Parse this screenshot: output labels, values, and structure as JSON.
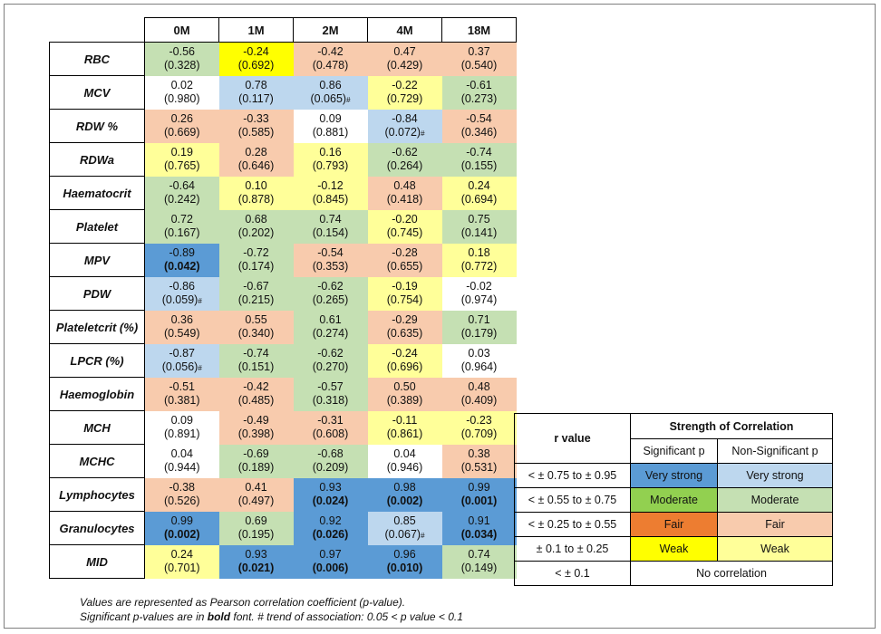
{
  "columns": [
    "0M",
    "1M",
    "2M",
    "4M",
    "18M"
  ],
  "rows": [
    {
      "label": "RBC",
      "cells": [
        {
          "r": "-0.56",
          "p": "(0.328)",
          "sig": false,
          "hash": false,
          "cls": "mon"
        },
        {
          "r": "-0.24",
          "p": "(0.692)",
          "sig": false,
          "hash": false,
          "cls": "we"
        },
        {
          "r": "-0.42",
          "p": "(0.478)",
          "sig": false,
          "hash": false,
          "cls": "fan"
        },
        {
          "r": "0.47",
          "p": "(0.429)",
          "sig": false,
          "hash": false,
          "cls": "fan"
        },
        {
          "r": "0.37",
          "p": "(0.540)",
          "sig": false,
          "hash": false,
          "cls": "fan"
        }
      ]
    },
    {
      "label": "MCV",
      "cells": [
        {
          "r": "0.02",
          "p": "(0.980)",
          "sig": false,
          "hash": false,
          "cls": "nc"
        },
        {
          "r": "0.78",
          "p": "(0.117)",
          "sig": false,
          "hash": false,
          "cls": "vsn"
        },
        {
          "r": "0.86",
          "p": "(0.065)",
          "sig": false,
          "hash": true,
          "cls": "vsn"
        },
        {
          "r": "-0.22",
          "p": "(0.729)",
          "sig": false,
          "hash": false,
          "cls": "wen"
        },
        {
          "r": "-0.61",
          "p": "(0.273)",
          "sig": false,
          "hash": false,
          "cls": "mon"
        }
      ]
    },
    {
      "label": "RDW %",
      "cells": [
        {
          "r": "0.26",
          "p": "(0.669)",
          "sig": false,
          "hash": false,
          "cls": "fan"
        },
        {
          "r": "-0.33",
          "p": "(0.585)",
          "sig": false,
          "hash": false,
          "cls": "fan"
        },
        {
          "r": "0.09",
          "p": "(0.881)",
          "sig": false,
          "hash": false,
          "cls": "nc"
        },
        {
          "r": "-0.84",
          "p": "(0.072)",
          "sig": false,
          "hash": true,
          "cls": "vsn"
        },
        {
          "r": "-0.54",
          "p": "(0.346)",
          "sig": false,
          "hash": false,
          "cls": "fan"
        }
      ]
    },
    {
      "label": "RDWa",
      "cells": [
        {
          "r": "0.19",
          "p": "(0.765)",
          "sig": false,
          "hash": false,
          "cls": "wen"
        },
        {
          "r": "0.28",
          "p": "(0.646)",
          "sig": false,
          "hash": false,
          "cls": "fan"
        },
        {
          "r": "0.16",
          "p": "(0.793)",
          "sig": false,
          "hash": false,
          "cls": "wen"
        },
        {
          "r": "-0.62",
          "p": "(0.264)",
          "sig": false,
          "hash": false,
          "cls": "mon"
        },
        {
          "r": "-0.74",
          "p": "(0.155)",
          "sig": false,
          "hash": false,
          "cls": "mon"
        }
      ]
    },
    {
      "label": "Haematocrit",
      "cells": [
        {
          "r": "-0.64",
          "p": "(0.242)",
          "sig": false,
          "hash": false,
          "cls": "mon"
        },
        {
          "r": "0.10",
          "p": "(0.878)",
          "sig": false,
          "hash": false,
          "cls": "wen"
        },
        {
          "r": "-0.12",
          "p": "(0.845)",
          "sig": false,
          "hash": false,
          "cls": "wen"
        },
        {
          "r": "0.48",
          "p": "(0.418)",
          "sig": false,
          "hash": false,
          "cls": "fan"
        },
        {
          "r": "0.24",
          "p": "(0.694)",
          "sig": false,
          "hash": false,
          "cls": "wen"
        }
      ]
    },
    {
      "label": "Platelet",
      "cells": [
        {
          "r": "0.72",
          "p": "(0.167)",
          "sig": false,
          "hash": false,
          "cls": "mon"
        },
        {
          "r": "0.68",
          "p": "(0.202)",
          "sig": false,
          "hash": false,
          "cls": "mon"
        },
        {
          "r": "0.74",
          "p": "(0.154)",
          "sig": false,
          "hash": false,
          "cls": "mon"
        },
        {
          "r": "-0.20",
          "p": "(0.745)",
          "sig": false,
          "hash": false,
          "cls": "wen"
        },
        {
          "r": "0.75",
          "p": "(0.141)",
          "sig": false,
          "hash": false,
          "cls": "mon"
        }
      ]
    },
    {
      "label": "MPV",
      "cells": [
        {
          "r": "-0.89",
          "p": "(0.042)",
          "sig": true,
          "hash": false,
          "cls": "vs"
        },
        {
          "r": "-0.72",
          "p": "(0.174)",
          "sig": false,
          "hash": false,
          "cls": "mon"
        },
        {
          "r": "-0.54",
          "p": "(0.353)",
          "sig": false,
          "hash": false,
          "cls": "fan"
        },
        {
          "r": "-0.28",
          "p": "(0.655)",
          "sig": false,
          "hash": false,
          "cls": "fan"
        },
        {
          "r": "0.18",
          "p": "(0.772)",
          "sig": false,
          "hash": false,
          "cls": "wen"
        }
      ]
    },
    {
      "label": "PDW",
      "cells": [
        {
          "r": "-0.86",
          "p": "(0.059)",
          "sig": false,
          "hash": true,
          "cls": "vsn"
        },
        {
          "r": "-0.67",
          "p": "(0.215)",
          "sig": false,
          "hash": false,
          "cls": "mon"
        },
        {
          "r": "-0.62",
          "p": "(0.265)",
          "sig": false,
          "hash": false,
          "cls": "mon"
        },
        {
          "r": "-0.19",
          "p": "(0.754)",
          "sig": false,
          "hash": false,
          "cls": "wen"
        },
        {
          "r": "-0.02",
          "p": "(0.974)",
          "sig": false,
          "hash": false,
          "cls": "nc"
        }
      ]
    },
    {
      "label": "Plateletcrit (%)",
      "cells": [
        {
          "r": "0.36",
          "p": "(0.549)",
          "sig": false,
          "hash": false,
          "cls": "fan"
        },
        {
          "r": "0.55",
          "p": "(0.340)",
          "sig": false,
          "hash": false,
          "cls": "fan"
        },
        {
          "r": "0.61",
          "p": "(0.274)",
          "sig": false,
          "hash": false,
          "cls": "mon"
        },
        {
          "r": "-0.29",
          "p": "(0.635)",
          "sig": false,
          "hash": false,
          "cls": "fan"
        },
        {
          "r": "0.71",
          "p": "(0.179)",
          "sig": false,
          "hash": false,
          "cls": "mon"
        }
      ]
    },
    {
      "label": "LPCR (%)",
      "cells": [
        {
          "r": "-0.87",
          "p": "(0.056)",
          "sig": false,
          "hash": true,
          "cls": "vsn"
        },
        {
          "r": "-0.74",
          "p": "(0.151)",
          "sig": false,
          "hash": false,
          "cls": "mon"
        },
        {
          "r": "-0.62",
          "p": "(0.270)",
          "sig": false,
          "hash": false,
          "cls": "mon"
        },
        {
          "r": "-0.24",
          "p": "(0.696)",
          "sig": false,
          "hash": false,
          "cls": "wen"
        },
        {
          "r": "0.03",
          "p": "(0.964)",
          "sig": false,
          "hash": false,
          "cls": "nc"
        }
      ]
    },
    {
      "label": "Haemoglobin",
      "cells": [
        {
          "r": "-0.51",
          "p": "(0.381)",
          "sig": false,
          "hash": false,
          "cls": "fan"
        },
        {
          "r": "-0.42",
          "p": "(0.485)",
          "sig": false,
          "hash": false,
          "cls": "fan"
        },
        {
          "r": "-0.57",
          "p": "(0.318)",
          "sig": false,
          "hash": false,
          "cls": "mon"
        },
        {
          "r": "0.50",
          "p": "(0.389)",
          "sig": false,
          "hash": false,
          "cls": "fan"
        },
        {
          "r": "0.48",
          "p": "(0.409)",
          "sig": false,
          "hash": false,
          "cls": "fan"
        }
      ]
    },
    {
      "label": "MCH",
      "cells": [
        {
          "r": "0.09",
          "p": "(0.891)",
          "sig": false,
          "hash": false,
          "cls": "nc"
        },
        {
          "r": "-0.49",
          "p": "(0.398)",
          "sig": false,
          "hash": false,
          "cls": "fan"
        },
        {
          "r": "-0.31",
          "p": "(0.608)",
          "sig": false,
          "hash": false,
          "cls": "fan"
        },
        {
          "r": "-0.11",
          "p": "(0.861)",
          "sig": false,
          "hash": false,
          "cls": "wen"
        },
        {
          "r": "-0.23",
          "p": "(0.709)",
          "sig": false,
          "hash": false,
          "cls": "wen"
        }
      ]
    },
    {
      "label": "MCHC",
      "cells": [
        {
          "r": "0.04",
          "p": "(0.944)",
          "sig": false,
          "hash": false,
          "cls": "nc"
        },
        {
          "r": "-0.69",
          "p": "(0.189)",
          "sig": false,
          "hash": false,
          "cls": "mon"
        },
        {
          "r": "-0.68",
          "p": "(0.209)",
          "sig": false,
          "hash": false,
          "cls": "mon"
        },
        {
          "r": "0.04",
          "p": "(0.946)",
          "sig": false,
          "hash": false,
          "cls": "nc"
        },
        {
          "r": "0.38",
          "p": "(0.531)",
          "sig": false,
          "hash": false,
          "cls": "fan"
        }
      ]
    },
    {
      "label": "Lymphocytes",
      "cells": [
        {
          "r": "-0.38",
          "p": "(0.526)",
          "sig": false,
          "hash": false,
          "cls": "fan"
        },
        {
          "r": "0.41",
          "p": "(0.497)",
          "sig": false,
          "hash": false,
          "cls": "fan"
        },
        {
          "r": "0.93",
          "p": "(0.024)",
          "sig": true,
          "hash": false,
          "cls": "vs"
        },
        {
          "r": "0.98",
          "p": "(0.002)",
          "sig": true,
          "hash": false,
          "cls": "vs"
        },
        {
          "r": "0.99",
          "p": "(0.001)",
          "sig": true,
          "hash": false,
          "cls": "vs"
        }
      ]
    },
    {
      "label": "Granulocytes",
      "cells": [
        {
          "r": "0.99",
          "p": "(0.002)",
          "sig": true,
          "hash": false,
          "cls": "vs"
        },
        {
          "r": "0.69",
          "p": "(0.195)",
          "sig": false,
          "hash": false,
          "cls": "mon"
        },
        {
          "r": "0.92",
          "p": "(0.026)",
          "sig": true,
          "hash": false,
          "cls": "vs"
        },
        {
          "r": "0.85",
          "p": "(0.067)",
          "sig": false,
          "hash": true,
          "cls": "vsn"
        },
        {
          "r": "0.91",
          "p": "(0.034)",
          "sig": true,
          "hash": false,
          "cls": "vs"
        }
      ]
    },
    {
      "label": "MID",
      "cells": [
        {
          "r": "0.24",
          "p": "(0.701)",
          "sig": false,
          "hash": false,
          "cls": "wen"
        },
        {
          "r": "0.93",
          "p": "(0.021)",
          "sig": true,
          "hash": false,
          "cls": "vs"
        },
        {
          "r": "0.97",
          "p": "(0.006)",
          "sig": true,
          "hash": false,
          "cls": "vs"
        },
        {
          "r": "0.96",
          "p": "(0.010)",
          "sig": true,
          "hash": false,
          "cls": "vs"
        },
        {
          "r": "0.74",
          "p": "(0.149)",
          "sig": false,
          "hash": false,
          "cls": "mon"
        }
      ]
    }
  ],
  "hash_symbol": "#",
  "notes": {
    "line1": "Values are represented as Pearson correlation coefficient (p-value).",
    "line2_pre": "Significant p-values are in ",
    "line2_bold": "bold",
    "line2_post": " font.  # trend of association: 0.05 < p value < 0.1"
  },
  "legend": {
    "r_value_header": "r value",
    "strength_header": "Strength of Correlation",
    "significant_header": "Significant p",
    "nonsignificant_header": "Non-Significant p",
    "rows": [
      {
        "range": "< ± 0.75  to ± 0.95",
        "sig": "Very strong",
        "nonsig": "Very strong",
        "sig_color": "#5b9bd5",
        "nonsig_color": "#bdd7ee"
      },
      {
        "range": "< ± 0.55  to ± 0.75",
        "sig": "Moderate",
        "nonsig": "Moderate",
        "sig_color": "#92d050",
        "nonsig_color": "#c5e0b3"
      },
      {
        "range": "< ± 0.25  to ± 0.55",
        "sig": "Fair",
        "nonsig": "Fair",
        "sig_color": "#ed7d31",
        "nonsig_color": "#f8cbad"
      },
      {
        "range": "± 0.1 to ± 0.25",
        "sig": "Weak",
        "nonsig": "Weak",
        "sig_color": "#ffff00",
        "nonsig_color": "#ffff99"
      }
    ],
    "no_corr_range": "< ± 0.1",
    "no_corr_label": "No correlation"
  }
}
